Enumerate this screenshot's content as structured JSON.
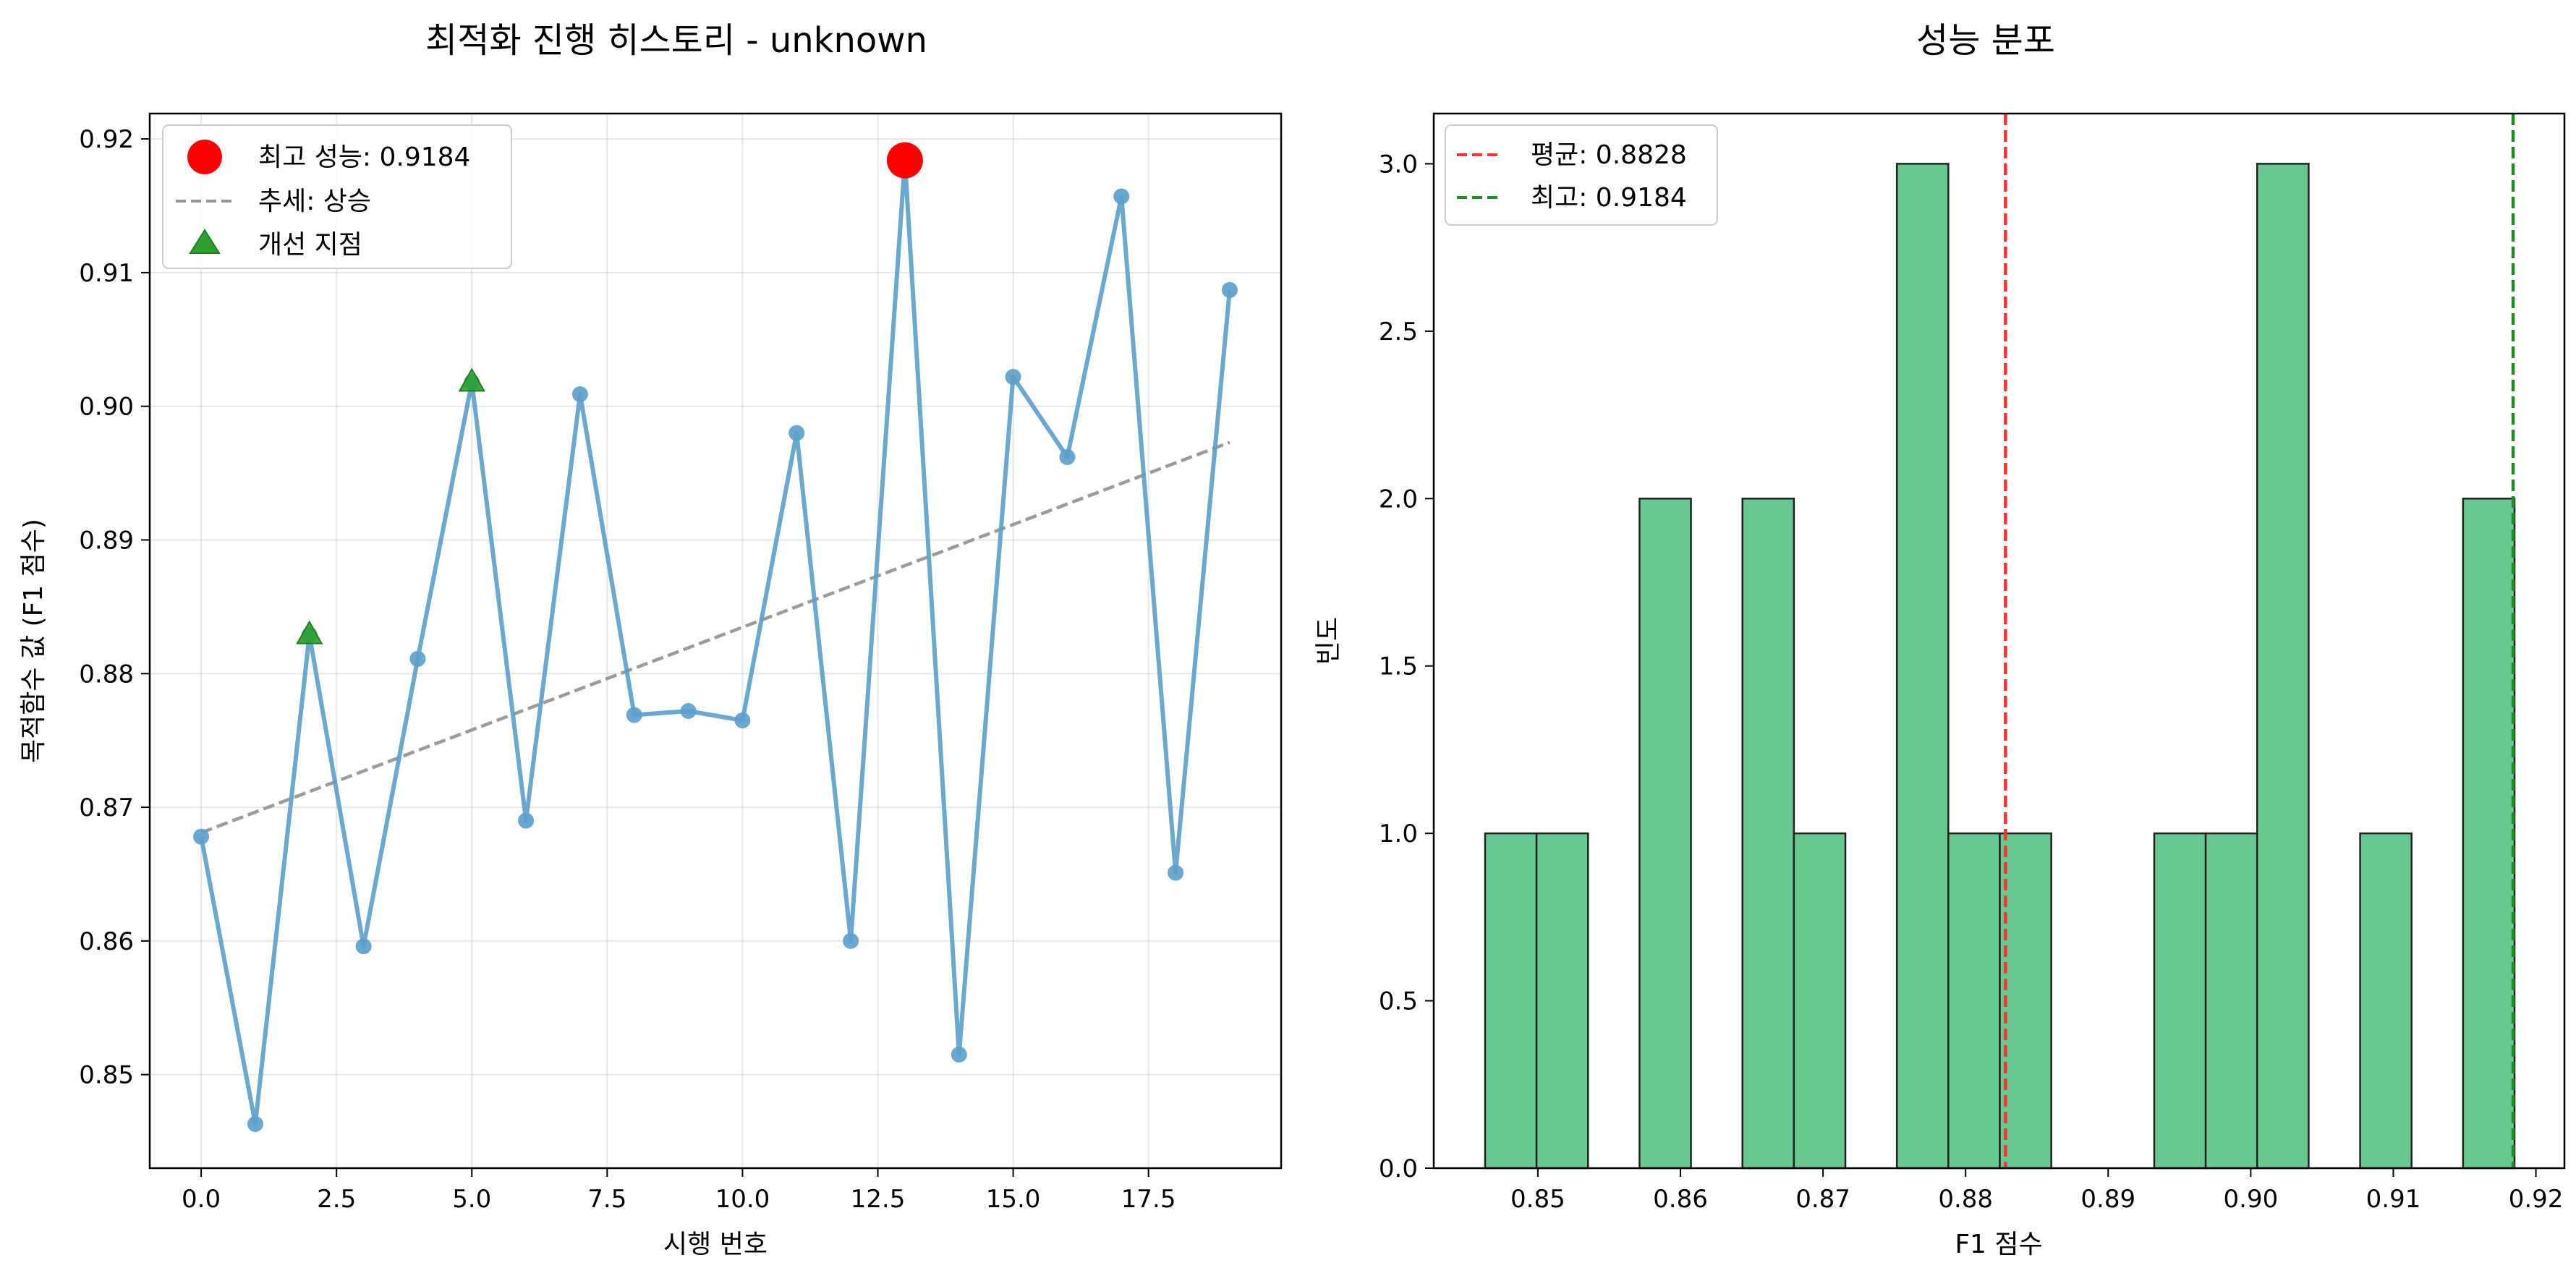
{
  "chart_data": [
    {
      "type": "line",
      "title": "최적화 진행 히스토리 - unknown",
      "xlabel": "시행 번호",
      "ylabel": "목적함수 값 (F1 점수)",
      "xlim": [
        -0.95,
        19.95
      ],
      "ylim": [
        0.843,
        0.9219
      ],
      "xticks": [
        0.0,
        2.5,
        5.0,
        7.5,
        10.0,
        12.5,
        15.0,
        17.5
      ],
      "xtick_labels": [
        "0.0",
        "2.5",
        "5.0",
        "7.5",
        "10.0",
        "12.5",
        "15.0",
        "17.5"
      ],
      "yticks": [
        0.85,
        0.86,
        0.87,
        0.88,
        0.89,
        0.9,
        0.91,
        0.92
      ],
      "ytick_labels": [
        "0.85",
        "0.86",
        "0.87",
        "0.88",
        "0.89",
        "0.90",
        "0.91",
        "0.92"
      ],
      "grid": true,
      "legend_position": "upper-left",
      "series": [
        {
          "color": "#5b9fca",
          "x": [
            0,
            1,
            2,
            3,
            4,
            5,
            6,
            7,
            8,
            9,
            10,
            11,
            12,
            13,
            14,
            15,
            16,
            17,
            18,
            19
          ],
          "y": [
            0.8678,
            0.8463,
            0.8829,
            0.8596,
            0.8811,
            0.9018,
            0.869,
            0.9009,
            0.8769,
            0.8772,
            0.8765,
            0.898,
            0.86,
            0.9184,
            0.8515,
            0.9022,
            0.8962,
            0.9157,
            0.8651,
            0.9087
          ]
        },
        {
          "name": "최고 성능: 0.9184",
          "type": "scatter",
          "color": "#ff0000",
          "x": [
            13
          ],
          "y": [
            0.9184
          ]
        },
        {
          "name": "추세: 상승",
          "type": "line",
          "style": "dashed",
          "color": "#969696",
          "x": [
            0,
            19
          ],
          "y": [
            0.8681,
            0.8973
          ]
        },
        {
          "name": "개선 지점",
          "type": "scatter",
          "marker": "triangle",
          "color": "#2ca02c",
          "x": [
            2,
            5
          ],
          "y": [
            0.8829,
            0.9018
          ]
        }
      ],
      "legend": [
        "최고 성능: 0.9184",
        "추세: 상승",
        "개선 지점"
      ]
    },
    {
      "type": "bar",
      "title": "성능 분포",
      "xlabel": "F1 점수",
      "ylabel": "빈도",
      "bar_color": "#68c990",
      "xlim": [
        0.8427,
        0.922
      ],
      "ylim": [
        0,
        3.15
      ],
      "xticks": [
        0.85,
        0.86,
        0.87,
        0.88,
        0.89,
        0.9,
        0.91,
        0.92
      ],
      "xtick_labels": [
        "0.85",
        "0.86",
        "0.87",
        "0.88",
        "0.89",
        "0.90",
        "0.91",
        "0.92"
      ],
      "yticks": [
        0.0,
        0.5,
        1.0,
        1.5,
        2.0,
        2.5,
        3.0
      ],
      "ytick_labels": [
        "0.0",
        "0.5",
        "1.0",
        "1.5",
        "2.0",
        "2.5",
        "3.0"
      ],
      "bin_start": 0.8463,
      "bin_width": 0.00361,
      "counts": [
        1,
        1,
        0,
        2,
        0,
        2,
        1,
        0,
        3,
        1,
        1,
        0,
        0,
        1,
        1,
        3,
        0,
        1,
        0,
        2
      ],
      "lines": [
        {
          "name": "평균: 0.8828",
          "x": 0.8828,
          "color": "#ff3030",
          "style": "dashed"
        },
        {
          "name": "최고: 0.9184",
          "x": 0.9184,
          "color": "#1f8f1f",
          "style": "dashed"
        }
      ],
      "legend_position": "upper-left"
    }
  ]
}
